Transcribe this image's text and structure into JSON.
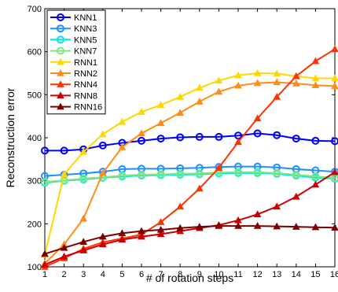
{
  "chart_data": {
    "type": "line",
    "title": "",
    "xlabel": "# of rotation steps",
    "ylabel": "Reconstruction error",
    "x": [
      1,
      2,
      3,
      4,
      5,
      6,
      7,
      8,
      9,
      10,
      11,
      12,
      13,
      14,
      15,
      16
    ],
    "xlim": [
      1,
      16
    ],
    "ylim": [
      100,
      700
    ],
    "xticks": [
      "1",
      "2",
      "3",
      "4",
      "5",
      "6",
      "7",
      "8",
      "9",
      "10",
      "11",
      "12",
      "13",
      "14",
      "15",
      "16"
    ],
    "yticks": [
      "100",
      "200",
      "300",
      "400",
      "500",
      "600",
      "700"
    ],
    "grid": false,
    "legend_position": "top-left",
    "series": [
      {
        "name": "KNN1",
        "color": "#0000ff",
        "marker": "circle",
        "values": [
          370,
          370,
          373,
          382,
          388,
          393,
          398,
          401,
          402,
          402,
          405,
          410,
          406,
          398,
          393,
          392
        ]
      },
      {
        "name": "KNN3",
        "color": "#1e90ff",
        "marker": "circle",
        "values": [
          311,
          314,
          317,
          321,
          327,
          328,
          328,
          329,
          330,
          332,
          333,
          333,
          331,
          327,
          324,
          321
        ]
      },
      {
        "name": "KNN5",
        "color": "#00e5e5",
        "marker": "circle",
        "values": [
          295,
          300,
          303,
          307,
          310,
          312,
          313,
          314,
          315,
          317,
          318,
          318,
          316,
          312,
          307,
          305
        ]
      },
      {
        "name": "KNN7",
        "color": "#7fe57f",
        "marker": "circle",
        "values": [
          297,
          301,
          305,
          308,
          312,
          314,
          315,
          316,
          317,
          319,
          320,
          320,
          318,
          314,
          310,
          307
        ]
      },
      {
        "name": "RNN1",
        "color": "#ffd700",
        "marker": "triangle",
        "values": [
          128,
          315,
          367,
          408,
          437,
          460,
          476,
          495,
          516,
          533,
          545,
          550,
          549,
          543,
          538,
          538
        ]
      },
      {
        "name": "RNN2",
        "color": "#ff8c1a",
        "marker": "triangle",
        "values": [
          108,
          152,
          212,
          318,
          378,
          410,
          434,
          458,
          484,
          507,
          521,
          527,
          529,
          526,
          522,
          520
        ]
      },
      {
        "name": "RNN4",
        "color": "#ff3300",
        "marker": "triangle",
        "values": [
          100,
          120,
          142,
          157,
          166,
          175,
          204,
          240,
          282,
          330,
          390,
          445,
          495,
          543,
          578,
          606
        ]
      },
      {
        "name": "RNN8",
        "color": "#cc0000",
        "marker": "triangle",
        "values": [
          105,
          124,
          138,
          152,
          163,
          170,
          176,
          183,
          190,
          197,
          208,
          222,
          240,
          263,
          291,
          320
        ]
      },
      {
        "name": "RNN16",
        "color": "#7a0000",
        "marker": "triangle",
        "values": [
          130,
          144,
          158,
          170,
          178,
          183,
          186,
          190,
          193,
          195,
          195,
          195,
          194,
          193,
          192,
          191
        ]
      }
    ]
  }
}
